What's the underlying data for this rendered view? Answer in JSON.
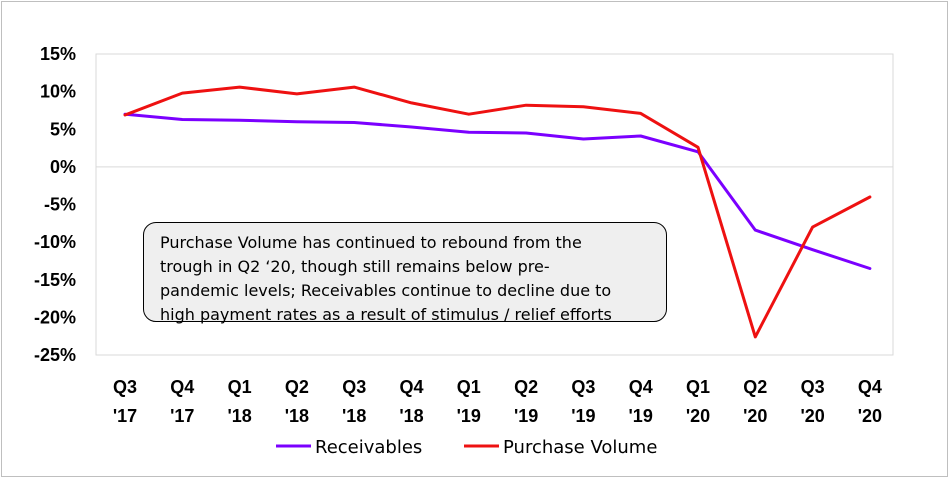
{
  "chart_data": {
    "type": "line",
    "categories": [
      [
        "Q3",
        "'17"
      ],
      [
        "Q4",
        "'17"
      ],
      [
        "Q1",
        "'18"
      ],
      [
        "Q2",
        "'18"
      ],
      [
        "Q3",
        "'18"
      ],
      [
        "Q4",
        "'18"
      ],
      [
        "Q1",
        "'19"
      ],
      [
        "Q2",
        "'19"
      ],
      [
        "Q3",
        "'19"
      ],
      [
        "Q4",
        "'19"
      ],
      [
        "Q1",
        "'20"
      ],
      [
        "Q2",
        "'20"
      ],
      [
        "Q3",
        "'20"
      ],
      [
        "Q4",
        "'20"
      ]
    ],
    "series": [
      {
        "name": "Receivables",
        "color": "#7b00ff",
        "values": [
          7.0,
          6.3,
          6.2,
          6.0,
          5.9,
          5.3,
          4.6,
          4.5,
          3.7,
          4.1,
          2.0,
          -8.4,
          -11.0,
          -13.5
        ]
      },
      {
        "name": "Purchase Volume",
        "color": "#ee1111",
        "values": [
          6.9,
          9.8,
          10.6,
          9.7,
          10.6,
          8.5,
          7.0,
          8.2,
          8.0,
          7.1,
          2.6,
          -22.6,
          -8.0,
          -4.0
        ]
      }
    ],
    "ylim": [
      -25,
      15
    ],
    "yticks": [
      15,
      10,
      5,
      0,
      -5,
      -10,
      -15,
      -20,
      -25
    ],
    "ytick_labels": [
      "15%",
      "10%",
      "5%",
      "0%",
      "-5%",
      "-10%",
      "-15%",
      "-20%",
      "-25%"
    ],
    "legend_position": "bottom",
    "annotation": [
      "Purchase Volume has continued to rebound from the",
      "trough in Q2 ‘20, though still remains below pre-",
      "pandemic levels; Receivables continue to decline due to",
      "high payment rates as a result of stimulus / relief efforts"
    ]
  }
}
